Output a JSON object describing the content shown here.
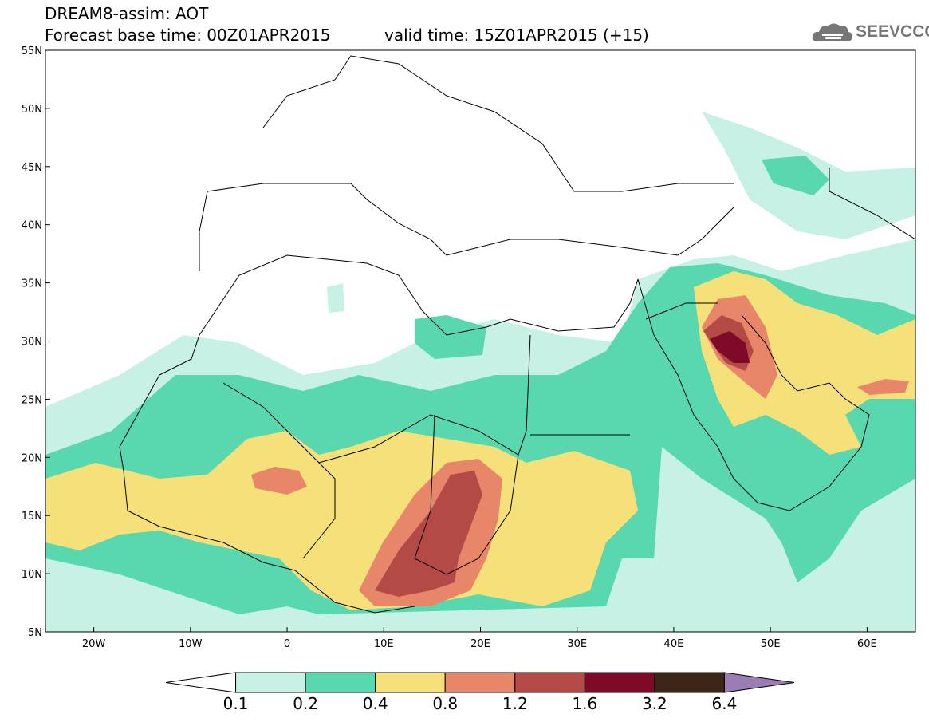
{
  "header": {
    "model_line": "DREAM8-assim: AOT",
    "base_time": "Forecast base time: 00Z01APR2015",
    "valid_time": "valid time: 15Z01APR2015 (+15)"
  },
  "logo": {
    "text": "SEEVCCC",
    "icon": "cloud-icon",
    "color": "#777777"
  },
  "axes": {
    "lat_labels": [
      "55N",
      "50N",
      "45N",
      "40N",
      "35N",
      "30N",
      "25N",
      "20N",
      "15N",
      "10N",
      "5N"
    ],
    "lon_labels": [
      "20W",
      "10W",
      "0",
      "10E",
      "20E",
      "30E",
      "40E",
      "50E",
      "60E"
    ],
    "lon_range": [
      -25,
      65
    ],
    "lat_range": [
      5,
      55
    ]
  },
  "colorbar": {
    "labels": [
      "0.1",
      "0.2",
      "0.4",
      "0.8",
      "1.2",
      "1.6",
      "3.2",
      "6.4"
    ],
    "colors": [
      "#ffffff",
      "#c6f1e4",
      "#59d8b0",
      "#f5e07a",
      "#e8866a",
      "#b44a45",
      "#7f0a27",
      "#3b2516",
      "#9b7cb3"
    ]
  }
}
